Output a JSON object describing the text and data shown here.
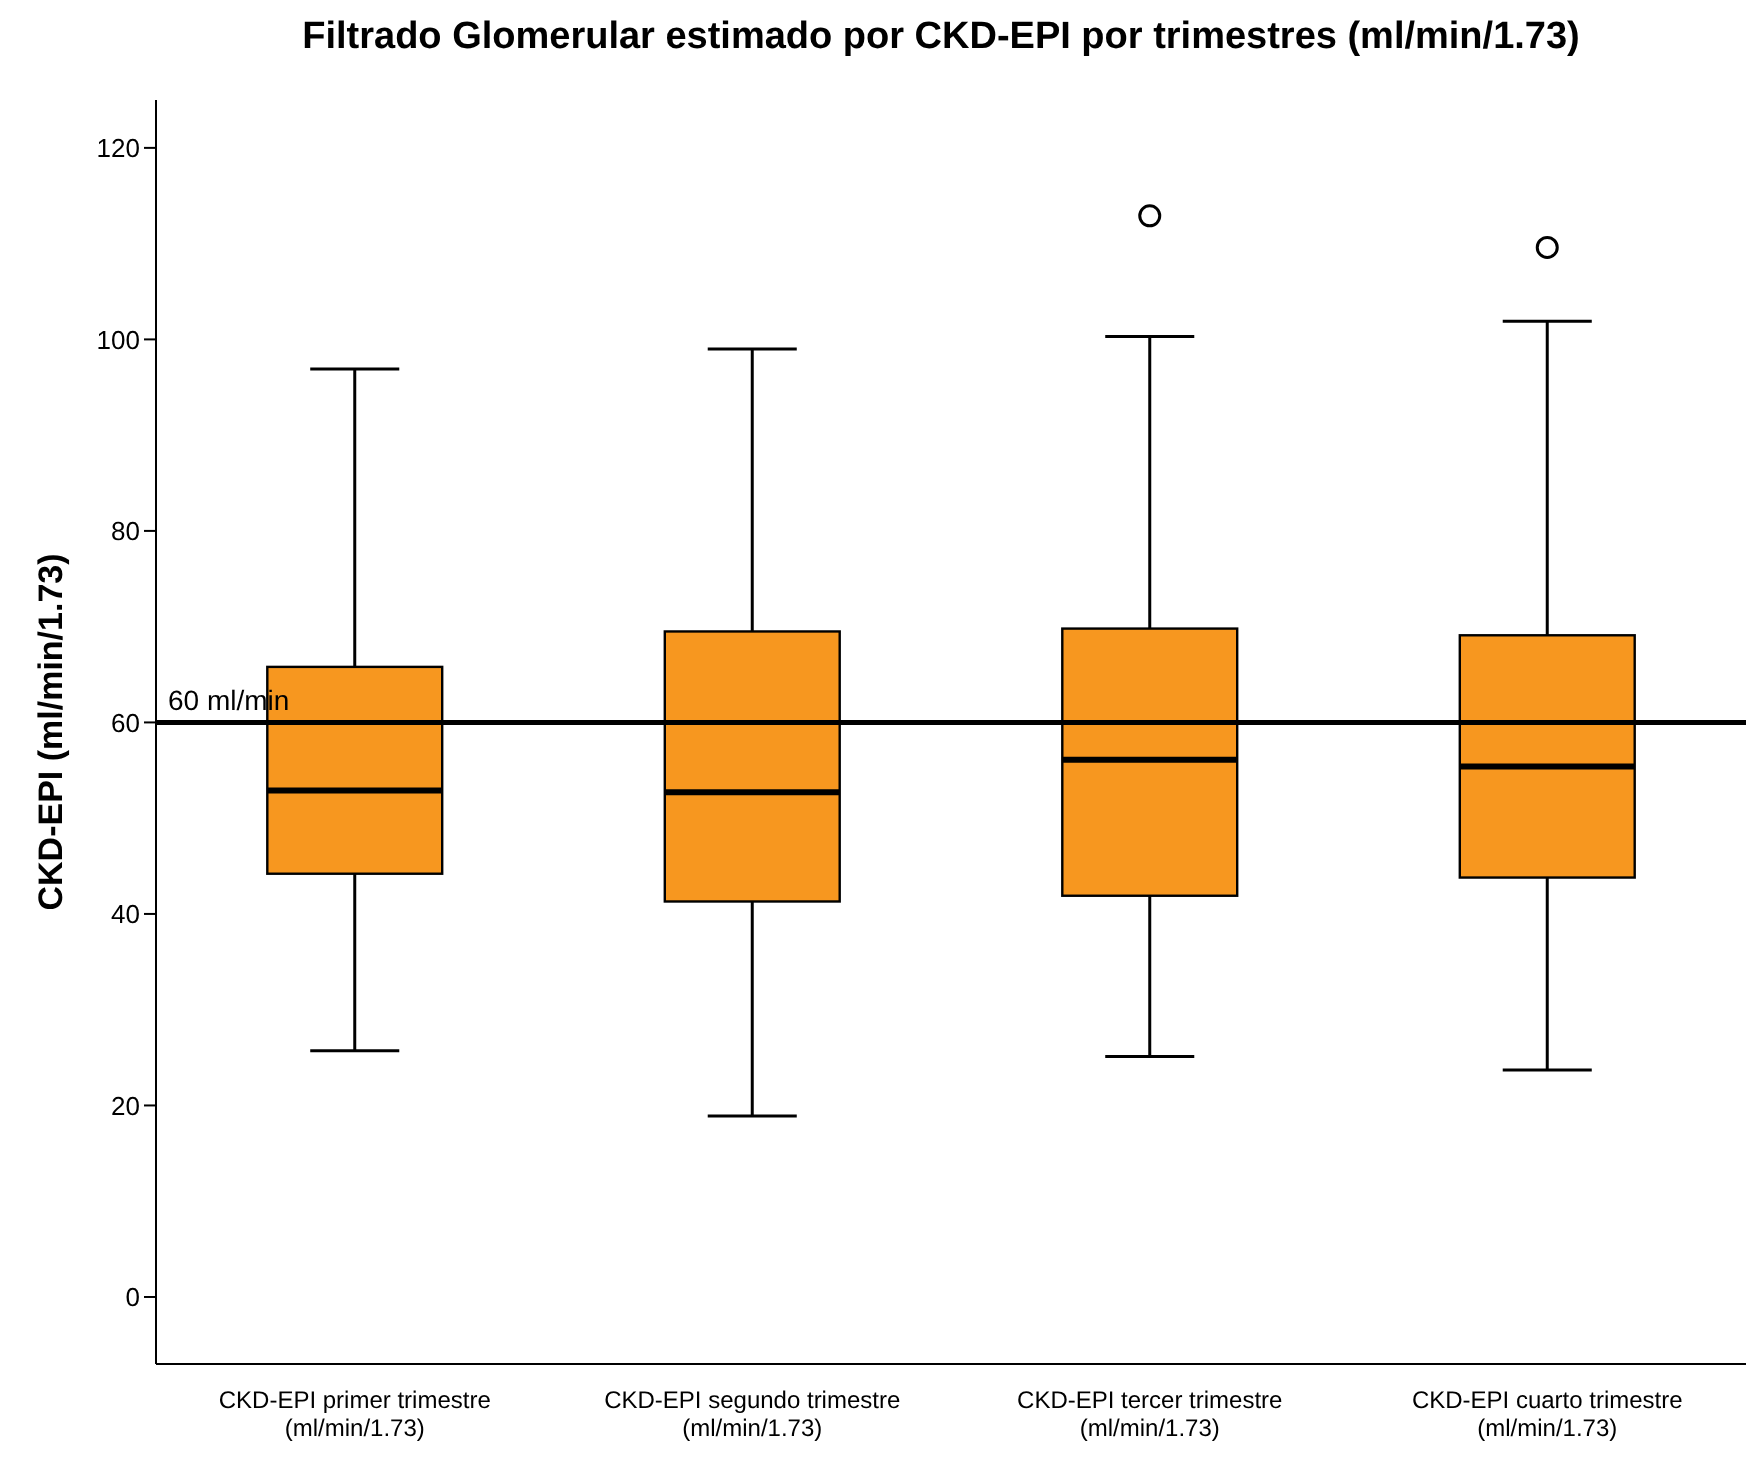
{
  "chart_data": {
    "type": "box",
    "title": "Filtrado Glomerular estimado por CKD-EPI por trimestres (ml/min/1.73)",
    "ylabel": "CKD-EPI (ml/min/1.73)",
    "categories": [
      "CKD-EPI primer trimestre (ml/min/1.73)",
      "CKD-EPI segundo trimestre (ml/min/1.73)",
      "CKD-EPI tercer trimestre (ml/min/1.73)",
      "CKD-EPI cuarto trimestre (ml/min/1.73)"
    ],
    "color": "#f7971f",
    "boxes": [
      {
        "low": 25.7,
        "q1": 44.2,
        "median": 52.9,
        "q3": 65.8,
        "high": 96.9
      },
      {
        "low": 18.9,
        "q1": 41.3,
        "median": 52.7,
        "q3": 69.5,
        "high": 99.0
      },
      {
        "low": 25.1,
        "q1": 41.9,
        "median": 56.1,
        "q3": 69.8,
        "high": 100.3,
        "outliers": [
          112.9
        ]
      },
      {
        "low": 23.7,
        "q1": 43.8,
        "median": 55.4,
        "q3": 69.1,
        "high": 101.9,
        "outliers": [
          109.6
        ]
      }
    ],
    "ylim": [
      -7,
      125
    ],
    "yticks": [
      0,
      20,
      40,
      60,
      80,
      100,
      120
    ],
    "ref_lines": [
      {
        "axis": "y",
        "value": 60,
        "label": "60 ml/min",
        "color": "#000000"
      }
    ],
    "grid": false,
    "legend": false
  }
}
